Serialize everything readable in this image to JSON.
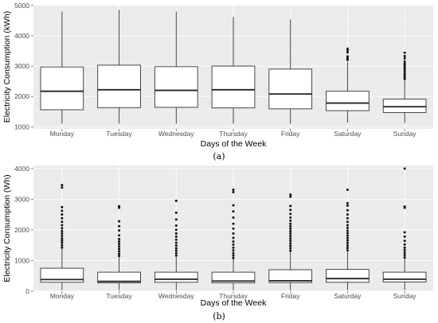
{
  "chart_data": [
    {
      "type": "box",
      "sub_label": "(a)",
      "xlabel": "Days of the Week",
      "ylabel": "Electricity Consumption (kWh)",
      "ylim": [
        930,
        5020
      ],
      "y_ticks": [
        1000,
        2000,
        3000,
        4000,
        5000
      ],
      "grid": true,
      "categories": [
        "Monday",
        "Tuesday",
        "Wednesday",
        "Thursday",
        "Friday",
        "Saturday",
        "Sunday"
      ],
      "boxes": [
        {
          "min": 1100,
          "q1": 1560,
          "median": 2170,
          "q3": 2970,
          "max": 4800,
          "outliers": []
        },
        {
          "min": 1100,
          "q1": 1630,
          "median": 2220,
          "q3": 3030,
          "max": 4850,
          "outliers": []
        },
        {
          "min": 1100,
          "q1": 1640,
          "median": 2200,
          "q3": 2980,
          "max": 4800,
          "outliers": []
        },
        {
          "min": 1100,
          "q1": 1620,
          "median": 2220,
          "q3": 3000,
          "max": 4620,
          "outliers": []
        },
        {
          "min": 1100,
          "q1": 1590,
          "median": 2080,
          "q3": 2900,
          "max": 4540,
          "outliers": []
        },
        {
          "min": 1130,
          "q1": 1530,
          "median": 1780,
          "q3": 2170,
          "max": 3130,
          "outliers": [
            3200,
            3260,
            3320,
            3450,
            3520,
            3570
          ]
        },
        {
          "min": 1120,
          "q1": 1470,
          "median": 1660,
          "q3": 1910,
          "max": 2540,
          "outliers": [
            2580,
            2640,
            2700,
            2760,
            2830,
            2900,
            2960,
            3020,
            3080,
            3150,
            3250,
            3330,
            3440
          ]
        }
      ]
    },
    {
      "type": "box",
      "sub_label": "(b)",
      "xlabel": "Days of the Week",
      "ylabel": "Electricity Consumption (Wh)",
      "ylim": [
        0,
        4100
      ],
      "y_ticks": [
        0,
        1000,
        2000,
        3000,
        4000
      ],
      "grid": true,
      "categories": [
        "Monday",
        "Tuesday",
        "Wednesday",
        "Thursday",
        "Friday",
        "Saturday",
        "Sunday"
      ],
      "boxes": [
        {
          "min": 30,
          "q1": 290,
          "median": 380,
          "q3": 750,
          "max": 1380,
          "outliers": [
            1420,
            1500,
            1580,
            1650,
            1720,
            1800,
            1880,
            1960,
            2050,
            2150,
            2260,
            2380,
            2500,
            2620,
            2740,
            3380,
            3460
          ]
        },
        {
          "min": 30,
          "q1": 270,
          "median": 320,
          "q3": 620,
          "max": 1120,
          "outliers": [
            1150,
            1220,
            1300,
            1380,
            1460,
            1540,
            1620,
            1700,
            1820,
            1980,
            2120,
            2280,
            2720,
            2770
          ]
        },
        {
          "min": 30,
          "q1": 290,
          "median": 390,
          "q3": 620,
          "max": 1120,
          "outliers": [
            1160,
            1240,
            1320,
            1400,
            1490,
            1580,
            1680,
            1780,
            1880,
            2000,
            2140,
            2340,
            2560,
            2950
          ]
        },
        {
          "min": 30,
          "q1": 270,
          "median": 330,
          "q3": 620,
          "max": 1040,
          "outliers": [
            1080,
            1160,
            1240,
            1330,
            1420,
            1520,
            1620,
            1740,
            1880,
            2040,
            2200,
            2400,
            2600,
            2800,
            3230,
            3310
          ]
        },
        {
          "min": 30,
          "q1": 280,
          "median": 340,
          "q3": 700,
          "max": 1280,
          "outliers": [
            1320,
            1400,
            1480,
            1560,
            1640,
            1720,
            1800,
            1880,
            1960,
            2040,
            2120,
            2200,
            2300,
            2400,
            2520,
            2650,
            2780,
            3080,
            3150
          ]
        },
        {
          "min": 30,
          "q1": 290,
          "median": 410,
          "q3": 710,
          "max": 1280,
          "outliers": [
            1330,
            1410,
            1490,
            1570,
            1650,
            1730,
            1810,
            1890,
            1970,
            2060,
            2150,
            2260,
            2380,
            2500,
            2640,
            2790,
            2870,
            3310
          ]
        },
        {
          "min": 30,
          "q1": 300,
          "median": 390,
          "q3": 620,
          "max": 1060,
          "outliers": [
            1100,
            1180,
            1260,
            1340,
            1420,
            1520,
            1640,
            1780,
            1920,
            2720,
            2760,
            4000
          ]
        }
      ]
    }
  ]
}
